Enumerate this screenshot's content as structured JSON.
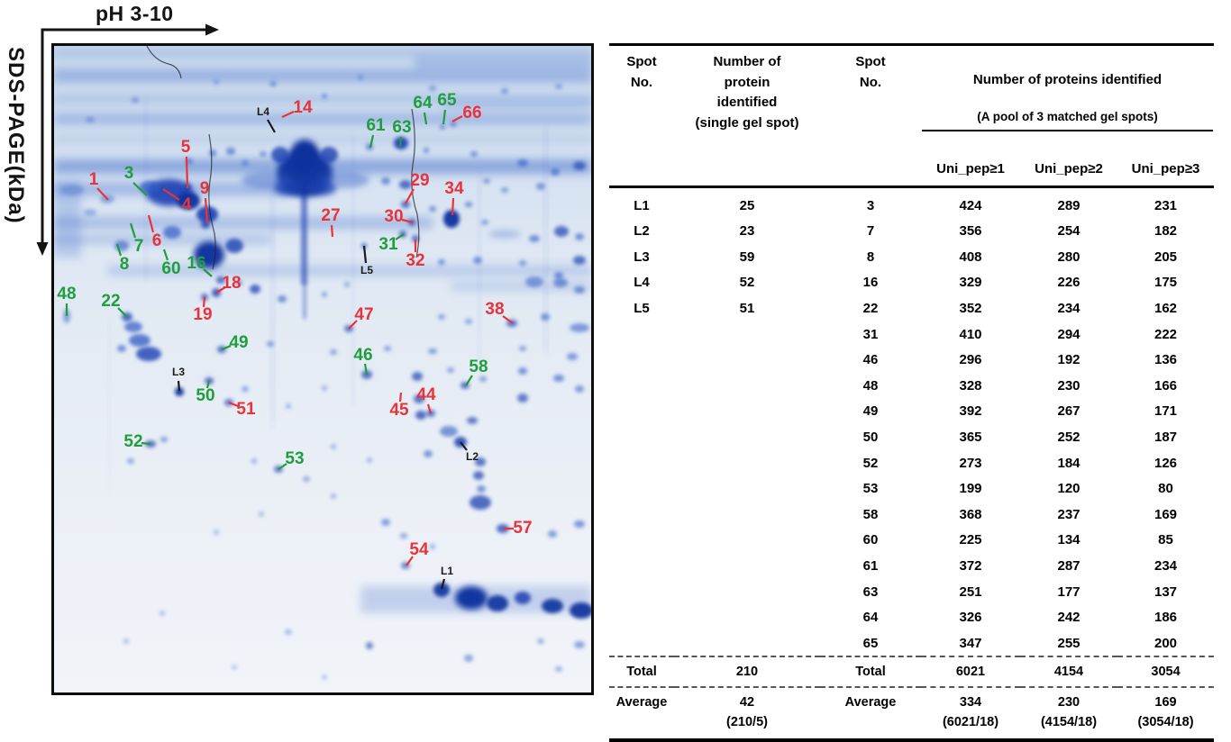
{
  "gel": {
    "x_axis_label": "pH 3-10",
    "y_axis_label": "SDS-PAGE(kDa)",
    "label_colors": {
      "red": "#e8333a",
      "green": "#1f9e3e",
      "black": "#1b1b1b"
    },
    "spot_labels_format": [
      "text",
      "color",
      "text_x",
      "text_y",
      "line_x1",
      "line_y1",
      "line_x2",
      "line_y2"
    ],
    "spot_labels": [
      [
        "1",
        "red",
        44,
        149,
        48,
        158,
        60,
        171
      ],
      [
        "3",
        "green",
        83,
        142,
        88,
        152,
        103,
        166
      ],
      [
        "5",
        "red",
        146,
        113,
        147,
        123,
        148,
        158
      ],
      [
        "4",
        "red",
        147,
        177,
        139,
        171,
        121,
        159
      ],
      [
        "9",
        "red",
        167,
        159,
        168,
        169,
        170,
        197
      ],
      [
        "6",
        "red",
        114,
        217,
        110,
        207,
        105,
        188
      ],
      [
        "7",
        "green",
        94,
        223,
        90,
        213,
        85,
        197
      ],
      [
        "8",
        "green",
        78,
        243,
        74,
        233,
        70,
        220
      ],
      [
        "60",
        "green",
        130,
        248,
        126,
        238,
        122,
        226
      ],
      [
        "16",
        "green",
        158,
        242,
        166,
        248,
        175,
        256
      ],
      [
        "14",
        "red",
        276,
        69,
        266,
        73,
        253,
        79
      ],
      [
        "L4",
        "black",
        232,
        74,
        237,
        82,
        245,
        96
      ],
      [
        "61",
        "green",
        357,
        89,
        354,
        99,
        351,
        113
      ],
      [
        "63",
        "green",
        386,
        91,
        385,
        101,
        384,
        112
      ],
      [
        "64",
        "green",
        409,
        64,
        411,
        74,
        413,
        87
      ],
      [
        "65",
        "green",
        436,
        61,
        434,
        71,
        432,
        87
      ],
      [
        "66",
        "red",
        464,
        75,
        453,
        78,
        442,
        84
      ],
      [
        "29",
        "red",
        406,
        150,
        399,
        159,
        390,
        175
      ],
      [
        "34",
        "red",
        444,
        159,
        443,
        169,
        442,
        188
      ],
      [
        "27",
        "red",
        307,
        189,
        308,
        199,
        309,
        212
      ],
      [
        "30",
        "red",
        377,
        190,
        386,
        193,
        398,
        196
      ],
      [
        "31",
        "green",
        371,
        221,
        379,
        215,
        388,
        209
      ],
      [
        "32",
        "red",
        401,
        239,
        401,
        229,
        401,
        215
      ],
      [
        "L5",
        "black",
        347,
        250,
        346,
        241,
        344,
        222
      ],
      [
        "18",
        "red",
        197,
        264,
        190,
        268,
        180,
        274
      ],
      [
        "19",
        "red",
        165,
        299,
        166,
        290,
        167,
        279
      ],
      [
        "48",
        "green",
        14,
        276,
        14,
        286,
        14,
        300
      ],
      [
        "22",
        "green",
        63,
        284,
        71,
        291,
        81,
        301
      ],
      [
        "47",
        "red",
        344,
        299,
        336,
        305,
        327,
        314
      ],
      [
        "38",
        "red",
        489,
        293,
        498,
        300,
        509,
        308
      ],
      [
        "49",
        "green",
        205,
        330,
        196,
        333,
        186,
        337
      ],
      [
        "46",
        "green",
        343,
        344,
        345,
        353,
        347,
        365
      ],
      [
        "58",
        "green",
        471,
        357,
        464,
        366,
        457,
        377
      ],
      [
        "L3",
        "black",
        138,
        363,
        138,
        372,
        139,
        383
      ],
      [
        "50",
        "green",
        168,
        389,
        170,
        380,
        172,
        372
      ],
      [
        "51",
        "red",
        213,
        404,
        204,
        400,
        194,
        396
      ],
      [
        "44",
        "red",
        413,
        388,
        415,
        398,
        418,
        408
      ],
      [
        "45",
        "red",
        383,
        405,
        384,
        395,
        385,
        385
      ],
      [
        "52",
        "green",
        88,
        440,
        97,
        441,
        107,
        442
      ],
      [
        "53",
        "green",
        267,
        459,
        258,
        464,
        249,
        470
      ],
      [
        "L2",
        "black",
        464,
        457,
        458,
        449,
        451,
        440
      ],
      [
        "57",
        "red",
        520,
        536,
        510,
        536,
        499,
        536
      ],
      [
        "54",
        "red",
        405,
        560,
        398,
        567,
        391,
        577
      ],
      [
        "L1",
        "black",
        436,
        584,
        433,
        592,
        430,
        603
      ]
    ]
  },
  "table": {
    "header": {
      "spot_no_1": "Spot\nNo.",
      "single_col": "Number of\nprotein\nidentified\n(single gel spot)",
      "spot_no_2": "Spot\nNo.",
      "pool_group_line1": "Number of proteins identified",
      "pool_group_line2": "(A pool of 3 matched gel spots)",
      "pool_subcols": [
        "Uni_pep≥1",
        "Uni_pep≥2",
        "Uni_pep≥3"
      ]
    },
    "rows": [
      [
        "L1",
        "25",
        "3",
        "424",
        "289",
        "231"
      ],
      [
        "L2",
        "23",
        "7",
        "356",
        "254",
        "182"
      ],
      [
        "L3",
        "59",
        "8",
        "408",
        "280",
        "205"
      ],
      [
        "L4",
        "52",
        "16",
        "329",
        "226",
        "175"
      ],
      [
        "L5",
        "51",
        "22",
        "352",
        "234",
        "162"
      ],
      [
        "",
        "",
        "31",
        "410",
        "294",
        "222"
      ],
      [
        "",
        "",
        "46",
        "296",
        "192",
        "136"
      ],
      [
        "",
        "",
        "48",
        "328",
        "230",
        "166"
      ],
      [
        "",
        "",
        "49",
        "392",
        "267",
        "171"
      ],
      [
        "",
        "",
        "50",
        "365",
        "252",
        "187"
      ],
      [
        "",
        "",
        "52",
        "273",
        "184",
        "126"
      ],
      [
        "",
        "",
        "53",
        "199",
        "120",
        "80"
      ],
      [
        "",
        "",
        "58",
        "368",
        "237",
        "169"
      ],
      [
        "",
        "",
        "60",
        "225",
        "134",
        "85"
      ],
      [
        "",
        "",
        "61",
        "372",
        "287",
        "234"
      ],
      [
        "",
        "",
        "63",
        "251",
        "177",
        "137"
      ],
      [
        "",
        "",
        "64",
        "326",
        "242",
        "186"
      ],
      [
        "",
        "",
        "65",
        "347",
        "255",
        "200"
      ]
    ],
    "total": {
      "label_left": "Total",
      "single": "210",
      "label_right": "Total",
      "p1": "6021",
      "p2": "4154",
      "p3": "3054"
    },
    "average": {
      "label_left": "Average",
      "single": "42",
      "single_note": "(210/5)",
      "label_right": "Average",
      "p1": "334",
      "p1_note": "(6021/18)",
      "p2": "230",
      "p2_note": "(4154/18)",
      "p3": "169",
      "p3_note": "(3054/18)"
    }
  }
}
